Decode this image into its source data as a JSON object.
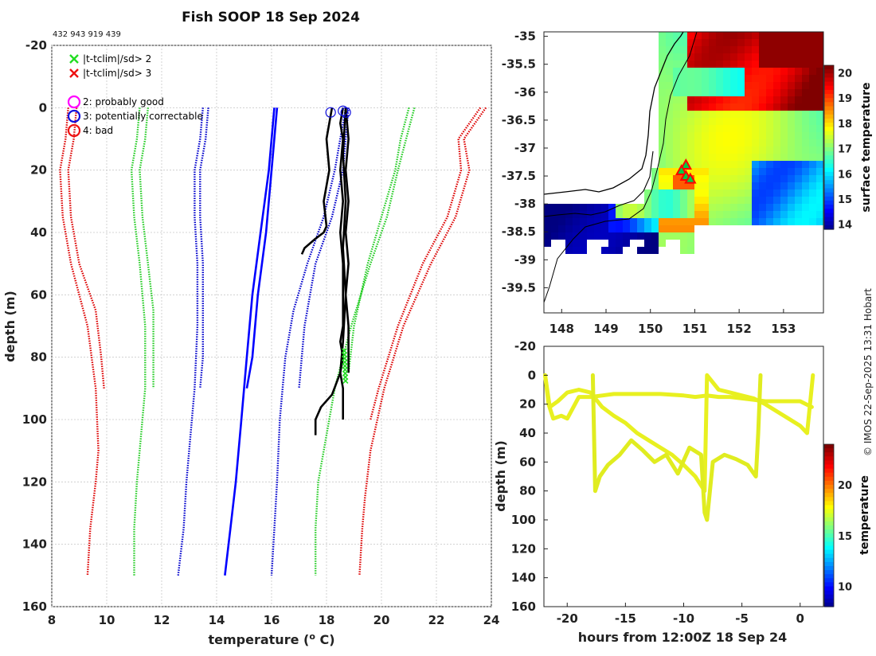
{
  "title": "Fish SOOP 18 Sep 2024",
  "id_line": "432 943 919 439",
  "credit": "© IMOS 22-Sep-2025 13:31 Hobart",
  "colors": {
    "good": "#ff00ff",
    "correctable": "#0000ff",
    "bad": "#ff0000",
    "sd2": "#00cc00",
    "sd3": "#dd0000",
    "profile": "#000000",
    "clim_mean": "#0000ff",
    "track": "#e8f020",
    "marker": "#ff0000"
  },
  "legend": {
    "items": [
      {
        "symbol": "x",
        "color": "#22dd22",
        "label": "|t-tclim|/sd> 2"
      },
      {
        "symbol": "x",
        "color": "#ee1111",
        "label": "|t-tclim|/sd> 3"
      },
      {
        "symbol": "o",
        "color": "#ff00ff",
        "label": "2: probably good"
      },
      {
        "symbol": "o",
        "color": "#1010dd",
        "label": "3: potentially correctable"
      },
      {
        "symbol": "o",
        "color": "#ee1111",
        "label": "4: bad"
      }
    ]
  },
  "chart_data": [
    {
      "type": "line",
      "name": "profile-plot",
      "xlabel": "temperature (°C)",
      "ylabel": "depth (m)",
      "xlim": [
        8,
        24
      ],
      "ylim": [
        160,
        -20
      ],
      "xticks": [
        8,
        10,
        12,
        14,
        16,
        18,
        20,
        22,
        24
      ],
      "yticks": [
        -20,
        0,
        20,
        40,
        60,
        80,
        100,
        120,
        140,
        160
      ],
      "series": [
        {
          "name": "clim -3sd left",
          "style": "dotted",
          "color": "#dd0000",
          "x": [
            8.6,
            8.5,
            8.3,
            8.4,
            8.7,
            9.3,
            9.6,
            9.7,
            9.6,
            9.4,
            9.3
          ],
          "y": [
            0,
            10,
            20,
            35,
            50,
            70,
            90,
            110,
            120,
            135,
            150
          ]
        },
        {
          "name": "clim -3sd left b",
          "style": "dotted",
          "color": "#dd0000",
          "x": [
            8.9,
            8.8,
            8.6,
            8.7,
            9.0,
            9.6,
            9.8,
            9.9
          ],
          "y": [
            0,
            10,
            20,
            35,
            50,
            65,
            80,
            90
          ]
        },
        {
          "name": "clim -2sd",
          "style": "dotted",
          "color": "#22cc22",
          "x": [
            11.2,
            11.1,
            10.9,
            11.0,
            11.2,
            11.4,
            11.4,
            11.2,
            11.1,
            11.0,
            11.0
          ],
          "y": [
            0,
            10,
            20,
            35,
            50,
            70,
            90,
            110,
            120,
            135,
            150
          ]
        },
        {
          "name": "clim -2sd b",
          "style": "dotted",
          "color": "#22cc22",
          "x": [
            11.5,
            11.4,
            11.2,
            11.3,
            11.5,
            11.7,
            11.7,
            11.7
          ],
          "y": [
            0,
            10,
            20,
            35,
            50,
            65,
            80,
            90
          ]
        },
        {
          "name": "clim -1sd",
          "style": "dotted",
          "color": "#0000cc",
          "x": [
            13.5,
            13.4,
            13.2,
            13.2,
            13.3,
            13.3,
            13.2,
            13.0,
            12.9,
            12.8,
            12.6
          ],
          "y": [
            0,
            10,
            20,
            35,
            50,
            70,
            90,
            110,
            120,
            135,
            150
          ]
        },
        {
          "name": "clim -1sd b",
          "style": "dotted",
          "color": "#0000cc",
          "x": [
            13.7,
            13.6,
            13.4,
            13.4,
            13.5,
            13.5,
            13.5,
            13.4
          ],
          "y": [
            0,
            10,
            20,
            35,
            50,
            65,
            80,
            90
          ]
        },
        {
          "name": "clim mean",
          "style": "solid",
          "color": "#0000ff",
          "x": [
            16.1,
            15.9,
            15.6,
            15.3,
            15.1,
            14.9,
            14.7,
            14.5,
            14.3
          ],
          "y": [
            0,
            20,
            40,
            60,
            80,
            100,
            120,
            135,
            150
          ]
        },
        {
          "name": "clim mean b",
          "style": "solid",
          "color": "#0000ff",
          "x": [
            16.2,
            16.0,
            15.8,
            15.5,
            15.3,
            15.1
          ],
          "y": [
            0,
            20,
            40,
            60,
            80,
            90
          ]
        },
        {
          "name": "clim +1sd",
          "style": "dotted",
          "color": "#0000cc",
          "x": [
            18.7,
            18.5,
            18.3,
            17.9,
            17.3,
            16.8,
            16.5,
            16.3,
            16.2,
            16.1,
            16.0
          ],
          "y": [
            0,
            10,
            20,
            35,
            50,
            65,
            80,
            100,
            120,
            135,
            150
          ]
        },
        {
          "name": "clim +1sd b",
          "style": "dotted",
          "color": "#0000cc",
          "x": [
            18.8,
            18.7,
            18.6,
            18.2,
            17.6,
            17.2,
            17.0
          ],
          "y": [
            0,
            10,
            20,
            35,
            50,
            70,
            90
          ]
        },
        {
          "name": "clim +2sd",
          "style": "dotted",
          "color": "#22cc22",
          "x": [
            21.2,
            20.9,
            20.6,
            20.2,
            19.6,
            18.9,
            18.3,
            17.9,
            17.7,
            17.6,
            17.6
          ],
          "y": [
            0,
            10,
            20,
            35,
            50,
            70,
            90,
            110,
            120,
            135,
            150
          ]
        },
        {
          "name": "clim +2sd b",
          "style": "dotted",
          "color": "#22cc22",
          "x": [
            21.0,
            20.7,
            20.5,
            20.0,
            19.5,
            19.0,
            18.8
          ],
          "y": [
            0,
            10,
            20,
            35,
            50,
            70,
            85
          ]
        },
        {
          "name": "clim +3sd",
          "style": "dotted",
          "color": "#dd0000",
          "x": [
            23.8,
            23.0,
            23.2,
            22.7,
            21.8,
            20.8,
            20.1,
            19.6,
            19.4,
            19.3,
            19.2
          ],
          "y": [
            0,
            10,
            20,
            35,
            50,
            70,
            90,
            110,
            125,
            135,
            150
          ]
        },
        {
          "name": "clim +3sd b",
          "style": "dotted",
          "color": "#dd0000",
          "x": [
            23.6,
            22.8,
            22.9,
            22.4,
            21.5,
            20.6,
            19.9,
            19.6
          ],
          "y": [
            0,
            10,
            20,
            35,
            50,
            70,
            90,
            100
          ]
        },
        {
          "name": "drop 1",
          "style": "solid",
          "color": "#000000",
          "x": [
            18.6,
            18.5,
            18.6,
            18.5,
            18.6,
            18.5,
            18.6,
            18.6,
            18.6,
            18.5,
            18.6,
            18.5,
            18.6,
            18.6,
            18.6
          ],
          "y": [
            0,
            5,
            10,
            20,
            30,
            40,
            50,
            60,
            70,
            75,
            80,
            85,
            90,
            95,
            100
          ]
        },
        {
          "name": "drop 2",
          "style": "solid",
          "color": "#000000",
          "x": [
            18.2,
            18.0,
            18.1,
            17.9,
            18.0,
            17.9,
            17.6,
            17.2,
            17.1
          ],
          "y": [
            0,
            10,
            20,
            30,
            38,
            40,
            42,
            45,
            47
          ]
        },
        {
          "name": "drop 3",
          "style": "solid",
          "color": "#000000",
          "x": [
            18.7,
            18.6,
            18.7,
            18.6,
            18.7,
            18.6,
            18.5,
            18.2,
            17.8,
            17.6,
            17.6
          ],
          "y": [
            0,
            15,
            30,
            45,
            60,
            75,
            85,
            92,
            96,
            100,
            105
          ]
        },
        {
          "name": "drop 4",
          "style": "solid",
          "color": "#000000",
          "x": [
            18.7,
            18.8,
            18.7,
            18.8,
            18.7,
            18.8,
            18.7,
            18.8,
            18.8
          ],
          "y": [
            0,
            10,
            20,
            30,
            40,
            50,
            60,
            70,
            85
          ]
        }
      ],
      "flag_markers": [
        {
          "flag": "3",
          "x": 18.15,
          "y": 1.5
        },
        {
          "flag": "3",
          "x": 18.6,
          "y": 1
        },
        {
          "flag": "3",
          "x": 18.7,
          "y": 1.5
        }
      ],
      "sd2_marker_depths": {
        "x": 18.65,
        "y_from": 78,
        "y_to": 88
      }
    },
    {
      "type": "heatmap",
      "name": "surface-temperature-map",
      "colorbar_label": "surface temperature",
      "colorbar_range": [
        13.8,
        20.3
      ],
      "colorbar_ticks": [
        14,
        15,
        16,
        17,
        18,
        19,
        20
      ],
      "xlim": [
        147.6,
        153.9
      ],
      "ylim": [
        -39.95,
        -34.92
      ],
      "xticks": [
        148,
        149,
        150,
        151,
        152,
        153
      ],
      "yticks": [
        -35,
        -35.5,
        -36,
        -36.5,
        -37,
        -37.5,
        -38,
        -38.5,
        -39,
        -39.5
      ],
      "drop_locations": [
        {
          "lon": 150.8,
          "lat": -37.3
        },
        {
          "lon": 150.7,
          "lat": -37.4
        },
        {
          "lon": 150.8,
          "lat": -37.5
        },
        {
          "lon": 150.9,
          "lat": -37.55
        }
      ]
    },
    {
      "type": "line",
      "name": "depth-time-plot",
      "xlabel": "hours from 12:00Z 18 Sep 24",
      "ylabel": "depth (m)",
      "colorbar_label": "temperature",
      "colorbar_range": [
        8,
        24
      ],
      "colorbar_ticks": [
        10,
        15,
        20
      ],
      "xlim": [
        -22,
        2
      ],
      "ylim": [
        160,
        -20
      ],
      "xticks": [
        -20,
        -15,
        -10,
        -5,
        0
      ],
      "yticks": [
        -20,
        0,
        20,
        40,
        60,
        80,
        100,
        120,
        140,
        160
      ],
      "series": [
        {
          "name": "track 1",
          "x": [
            -21.9,
            -21.6,
            -21.2,
            -20.5,
            -20,
            -19,
            -18,
            -17,
            -16,
            -14,
            -12,
            -10,
            -9,
            -8,
            -7,
            -6,
            -5,
            -4,
            -3,
            -2,
            -1,
            0,
            0.5,
            1
          ],
          "y": [
            0,
            20,
            30,
            28,
            30,
            15,
            15,
            14,
            13,
            13,
            13,
            14,
            15,
            14,
            15,
            15,
            16,
            17,
            18,
            18,
            18,
            18,
            20,
            22
          ],
          "color": "#e8f020"
        },
        {
          "name": "track 2",
          "x": [
            -21.9,
            -21.5,
            -20.8,
            -20,
            -19,
            -18,
            -17,
            -16,
            -15,
            -14,
            -13,
            -12,
            -11,
            -10,
            -9,
            -8.2,
            -8,
            -7,
            -6,
            -5,
            -4,
            -3,
            -2,
            -1,
            0,
            0.6,
            1.1
          ],
          "y": [
            0,
            22,
            18,
            12,
            10,
            12,
            22,
            28,
            33,
            40,
            45,
            50,
            55,
            62,
            70,
            80,
            0,
            10,
            12,
            14,
            16,
            20,
            25,
            30,
            35,
            40,
            0
          ],
          "color": "#e8f020"
        },
        {
          "name": "track 3",
          "x": [
            -17.8,
            -17.6,
            -17.2,
            -16.5,
            -15.5,
            -14.5,
            -13.5,
            -12.5,
            -11.5,
            -10.5,
            -9.5,
            -8.5,
            -8.2,
            -8.0,
            -7.5,
            -6.5,
            -5.5,
            -4.5,
            -3.8,
            -3.6,
            -3.4
          ],
          "y": [
            0,
            80,
            70,
            62,
            55,
            45,
            52,
            60,
            55,
            68,
            50,
            55,
            95,
            100,
            60,
            55,
            58,
            62,
            70,
            40,
            0
          ],
          "color": "#e0ec20"
        }
      ]
    }
  ]
}
